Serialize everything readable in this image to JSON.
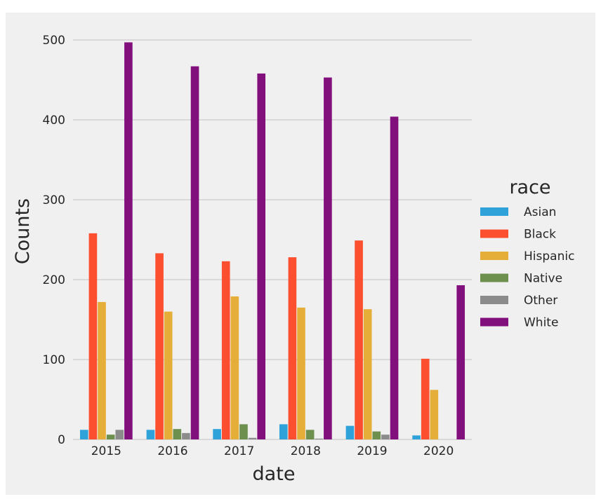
{
  "chart_data": {
    "type": "bar",
    "categories": [
      "2015",
      "2016",
      "2017",
      "2018",
      "2019",
      "2020"
    ],
    "series": [
      {
        "name": "Asian",
        "color": "#30a2da",
        "values": [
          12,
          12,
          13,
          19,
          17,
          5
        ]
      },
      {
        "name": "Black",
        "color": "#fc4f30",
        "values": [
          258,
          233,
          223,
          228,
          249,
          101
        ]
      },
      {
        "name": "Hispanic",
        "color": "#e5ae38",
        "values": [
          172,
          160,
          179,
          165,
          163,
          62
        ]
      },
      {
        "name": "Native",
        "color": "#6d904f",
        "values": [
          6,
          13,
          19,
          12,
          10,
          0
        ]
      },
      {
        "name": "Other",
        "color": "#8b8b8b",
        "values": [
          12,
          8,
          2,
          1,
          6,
          0
        ]
      },
      {
        "name": "White",
        "color": "#810f7c",
        "values": [
          497,
          467,
          458,
          453,
          404,
          193
        ]
      }
    ],
    "xlabel": "date",
    "ylabel": "Counts",
    "ylim": [
      0,
      500
    ],
    "yticks": [
      0,
      100,
      200,
      300,
      400,
      500
    ],
    "grid": true,
    "legend_title": "race",
    "legend_position": "right",
    "background_color": "#f0f0f0"
  }
}
